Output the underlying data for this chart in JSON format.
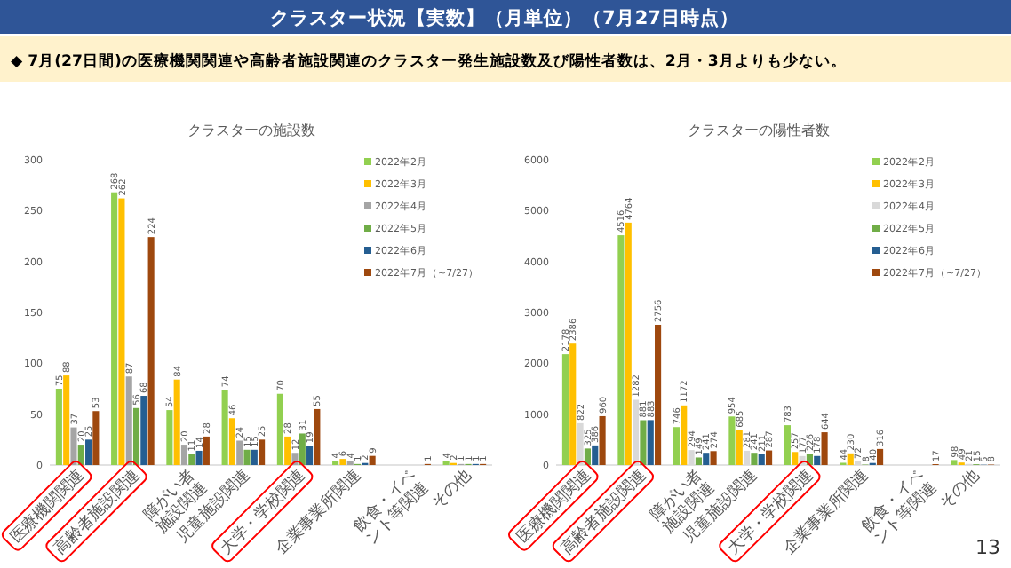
{
  "chart_data": [
    {
      "type": "bar",
      "title": "クラスターの施設数",
      "categories": [
        "医療機関関連",
        "高齢者施設関連",
        "障がい者施設関連",
        "児童施設関連",
        "大学・学校関連",
        "企業事業所関連",
        "飲食・イベント等関連",
        "その他"
      ],
      "series": [
        {
          "name": "2022年2月",
          "color": "#92d050",
          "values": [
            75,
            268,
            54,
            74,
            70,
            4,
            null,
            4
          ]
        },
        {
          "name": "2022年3月",
          "color": "#ffc000",
          "values": [
            88,
            262,
            84,
            46,
            28,
            6,
            null,
            2
          ]
        },
        {
          "name": "2022年4月",
          "color": "#a5a5a5",
          "values": [
            37,
            87,
            20,
            24,
            12,
            4,
            null,
            1
          ]
        },
        {
          "name": "2022年5月",
          "color": "#70ad47",
          "values": [
            20,
            56,
            11,
            15,
            31,
            1,
            null,
            1
          ]
        },
        {
          "name": "2022年6月",
          "color": "#255e91",
          "values": [
            25,
            68,
            14,
            15,
            19,
            2,
            null,
            1
          ]
        },
        {
          "name": "2022年7月（~7/27）",
          "color": "#9e480e",
          "values": [
            53,
            224,
            28,
            25,
            55,
            9,
            1,
            1
          ]
        }
      ],
      "ylim": [
        0,
        300
      ],
      "yticks": [
        0,
        50,
        100,
        150,
        200,
        250,
        300
      ],
      "data_labels": true,
      "legend": "top right",
      "annotations": [
        "クラスター状況【実数】（月単位）（7月27日時点）",
        "◆  7月(27日間)の医療機関関連や高齢者施設関連のクラスター発生施設数及び陽性者数は、2月・3月よりも少ない。",
        "13"
      ]
    },
    {
      "type": "bar",
      "title": "クラスターの陽性者数",
      "categories": [
        "医療機関関連",
        "高齢者施設関連",
        "障がい者施設関連",
        "児童施設関連",
        "大学・学校関連",
        "企業事業所関連",
        "飲食・イベント等関連",
        "その他"
      ],
      "series": [
        {
          "name": "2022年2月",
          "color": "#92d050",
          "values": [
            2178,
            4516,
            746,
            954,
            783,
            44,
            null,
            98
          ]
        },
        {
          "name": "2022年3月",
          "color": "#ffc000",
          "values": [
            2386,
            4764,
            1172,
            685,
            257,
            230,
            null,
            49
          ]
        },
        {
          "name": "2022年4月",
          "color": "#d9d9d9",
          "values": [
            822,
            1282,
            294,
            281,
            177,
            72,
            null,
            21
          ]
        },
        {
          "name": "2022年5月",
          "color": "#70ad47",
          "values": [
            325,
            881,
            149,
            241,
            226,
            8,
            null,
            15
          ]
        },
        {
          "name": "2022年6月",
          "color": "#255e91",
          "values": [
            386,
            883,
            241,
            211,
            178,
            40,
            null,
            5
          ]
        },
        {
          "name": "2022年7月（~7/27）",
          "color": "#9e480e",
          "values": [
            960,
            2756,
            274,
            287,
            644,
            316,
            17,
            8
          ]
        }
      ],
      "ylim": [
        0,
        6000
      ],
      "yticks": [
        0,
        1000,
        2000,
        3000,
        4000,
        5000,
        6000
      ],
      "data_labels": true,
      "legend": "top right"
    }
  ]
}
